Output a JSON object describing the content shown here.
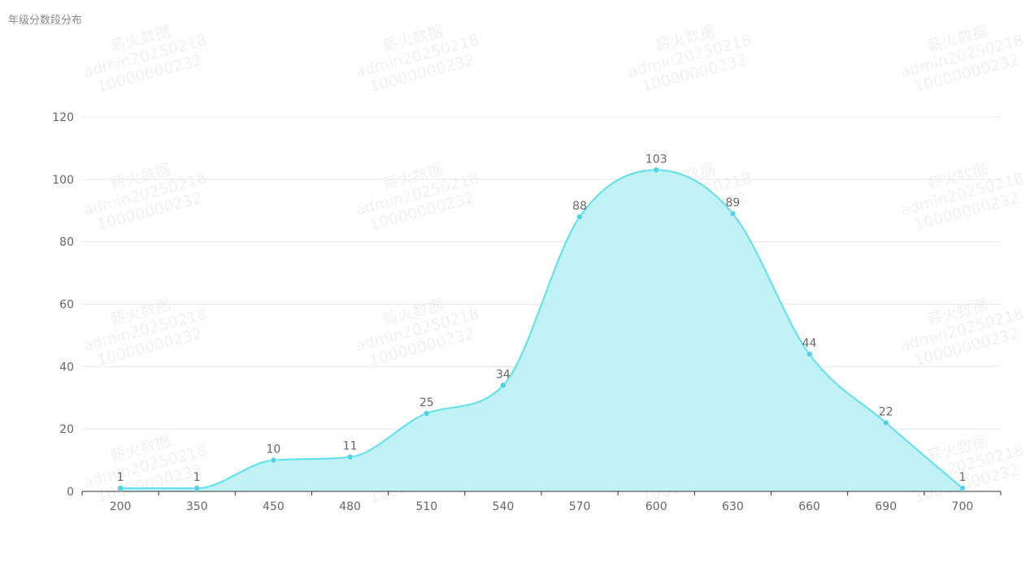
{
  "chart_data": {
    "type": "area",
    "title": "年级分数段分布",
    "categories": [
      "200",
      "350",
      "450",
      "480",
      "510",
      "540",
      "570",
      "600",
      "630",
      "660",
      "690",
      "700"
    ],
    "values": [
      1,
      1,
      10,
      11,
      25,
      34,
      88,
      103,
      89,
      44,
      22,
      1
    ],
    "y_ticks": [
      "0",
      "20",
      "40",
      "60",
      "80",
      "100",
      "120"
    ],
    "ylim": [
      0,
      120
    ],
    "xlabel": "",
    "ylabel": "",
    "grid": true,
    "smooth": true,
    "colors": {
      "line": "#5ee0ec",
      "fill": "#bff1f5",
      "point": "#4fd3e3",
      "grid": "#e4e7f0",
      "axis": "#333333"
    }
  },
  "watermark": {
    "lines": [
      "薪火数据",
      "admin20250218",
      "10000000232"
    ]
  }
}
